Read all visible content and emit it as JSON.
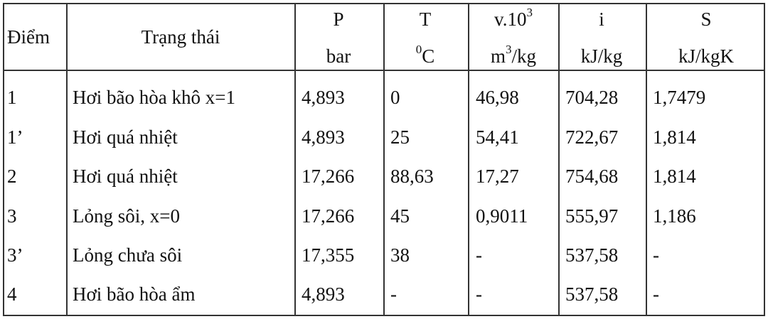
{
  "header": {
    "point": "Điểm",
    "state": "Trạng thái",
    "p_sym": "P",
    "p_unit": "bar",
    "t_sym": "T",
    "t_unit_sup": "0",
    "t_unit": "C",
    "v_sym": "v.10",
    "v_sym_sup": "3",
    "v_unit_a": "m",
    "v_unit_sup": "3",
    "v_unit_b": "/kg",
    "i_sym": "i",
    "i_unit": "kJ/kg",
    "s_sym": "S",
    "s_unit": "kJ/kgK"
  },
  "rows": [
    {
      "point": "1",
      "state": "Hơi bão hòa khô x=1",
      "p": "4,893",
      "t": "0",
      "v": "46,98",
      "i": "704,28",
      "s": "1,7479"
    },
    {
      "point": "1’",
      "state": "Hơi quá nhiệt",
      "p": "4,893",
      "t": "25",
      "v": "54,41",
      "i": "722,67",
      "s": "1,814"
    },
    {
      "point": "2",
      "state": "Hơi quá nhiệt",
      "p": "17,266",
      "t": "88,63",
      "v": "17,27",
      "i": "754,68",
      "s": "1,814"
    },
    {
      "point": "3",
      "state": "Lỏng sôi, x=0",
      "p": "17,266",
      "t": "45",
      "v": "0,9011",
      "i": "555,97",
      "s": "1,186"
    },
    {
      "point": "3’",
      "state": "Lỏng chưa sôi",
      "p": "17,355",
      "t": "38",
      "v": "-",
      "i": "537,58",
      "s": "-"
    },
    {
      "point": "4",
      "state": "Hơi bão hòa ẩm",
      "p": "4,893",
      "t": "-",
      "v": "-",
      "i": "537,58",
      "s": "-"
    }
  ]
}
